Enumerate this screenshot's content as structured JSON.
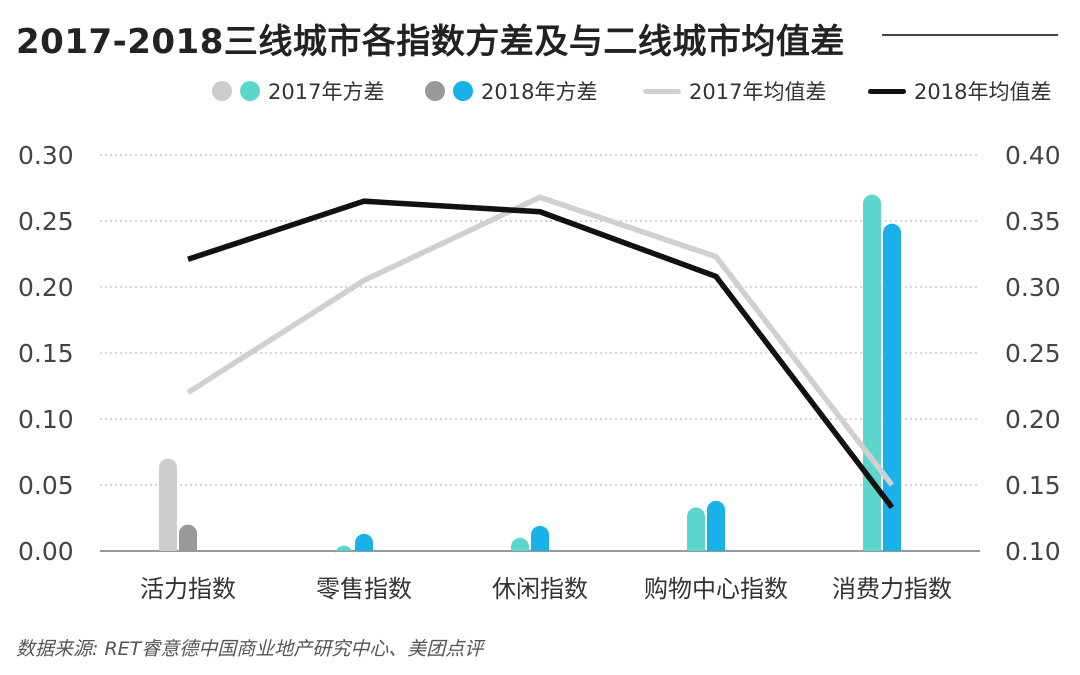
{
  "header": {
    "title": "2017-2018三线城市各指数方差及与二线城市均值差"
  },
  "legend": {
    "items": [
      {
        "label": "2017年方差",
        "colors": [
          "#cccccc",
          "#5cd6cc"
        ],
        "kind": "dots"
      },
      {
        "label": "2018年方差",
        "colors": [
          "#999999",
          "#1ab0e8"
        ],
        "kind": "dots"
      },
      {
        "label": "2017年均值差",
        "colors": [
          "#d0d0d0"
        ],
        "kind": "line"
      },
      {
        "label": "2018年均值差",
        "colors": [
          "#111111"
        ],
        "kind": "line"
      }
    ]
  },
  "footer": {
    "source": "数据来源: RET睿意德中国商业地产研究中心、美团点评"
  },
  "chart_data": {
    "type": "bar",
    "categories": [
      "活力指数",
      "零售指数",
      "休闲指数",
      "购物中心指数",
      "消费力指数"
    ],
    "y_left": {
      "ticks": [
        "0.00",
        "0.05",
        "0.10",
        "0.15",
        "0.20",
        "0.25",
        "0.30"
      ],
      "ylim": [
        0,
        0.3
      ]
    },
    "y_right": {
      "ticks": [
        "0.10",
        "0.15",
        "0.20",
        "0.25",
        "0.30",
        "0.35",
        "0.40"
      ],
      "ylim": [
        0.1,
        0.4
      ]
    },
    "grid": true,
    "legend_position": "top-right",
    "series": [
      {
        "name": "2017年方差",
        "type": "bar",
        "axis": "left",
        "values": [
          0.07,
          0.004,
          0.01,
          0.033,
          0.27
        ],
        "colors": [
          "#cccccc",
          "#5cd6cc",
          "#5cd6cc",
          "#5cd6cc",
          "#5cd6cc"
        ]
      },
      {
        "name": "2018年方差",
        "type": "bar",
        "axis": "left",
        "values": [
          0.02,
          0.013,
          0.019,
          0.038,
          0.248
        ],
        "colors": [
          "#999999",
          "#1ab0e8",
          "#1ab0e8",
          "#1ab0e8",
          "#1ab0e8"
        ]
      },
      {
        "name": "2017年均值差",
        "type": "line",
        "axis": "right",
        "values": [
          0.22,
          0.305,
          0.368,
          0.323,
          0.15
        ],
        "color": "#d0d0d0"
      },
      {
        "name": "2018年均值差",
        "type": "line",
        "axis": "right",
        "values": [
          0.321,
          0.365,
          0.357,
          0.308,
          0.133
        ],
        "color": "#111111"
      }
    ]
  }
}
